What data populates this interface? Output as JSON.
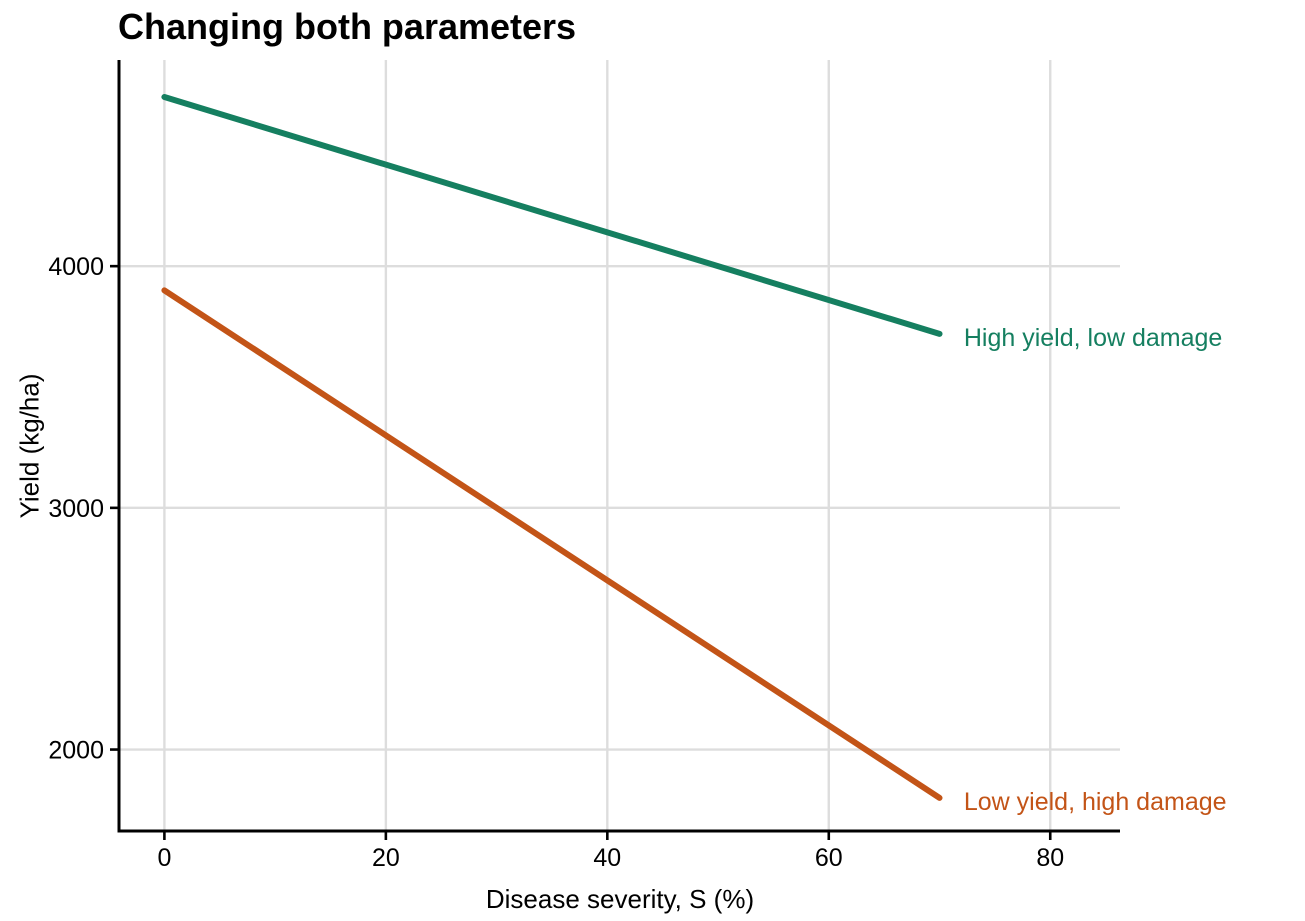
{
  "chart_data": {
    "type": "line",
    "title": "Changing both parameters",
    "xlabel": "Disease severity, S (%)",
    "ylabel": "Yield (kg/ha)",
    "xlim": [
      -4.1,
      86.3
    ],
    "ylim": [
      1663,
      4853
    ],
    "x_ticks": [
      0,
      20,
      40,
      60,
      80
    ],
    "y_ticks": [
      2000,
      3000,
      4000
    ],
    "grid": "major-only",
    "legend_position": "none (direct line labels)",
    "colors": {
      "background": "#ffffff",
      "gridline": "#dddddd",
      "axis": "#000000",
      "tick_label": "#000000",
      "green_series": "#157f60",
      "orange_series": "#c35417"
    },
    "series": [
      {
        "name": "High yield, low damage",
        "color": "#157f60",
        "x": [
          0,
          70
        ],
        "y": [
          4700,
          3720
        ],
        "label": {
          "text": "High yield, low damage",
          "x": 72.2,
          "y": 3706
        }
      },
      {
        "name": "Low yield, high damage",
        "color": "#c35417",
        "x": [
          0,
          70
        ],
        "y": [
          3900,
          1800
        ],
        "label": {
          "text": "Low yield, high damage",
          "x": 72.2,
          "y": 1787
        }
      }
    ]
  }
}
